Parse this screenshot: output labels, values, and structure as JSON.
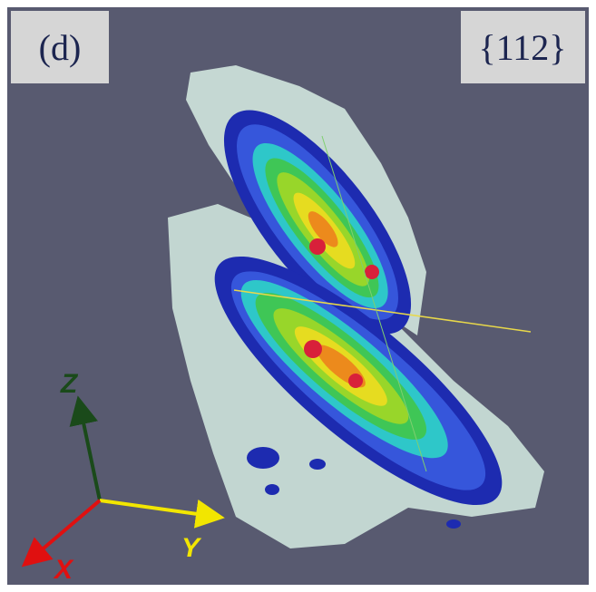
{
  "labels": {
    "panel": "(d)",
    "plane": "{112}"
  },
  "axes": {
    "z": "Z",
    "y": "Y",
    "x": "X"
  }
}
